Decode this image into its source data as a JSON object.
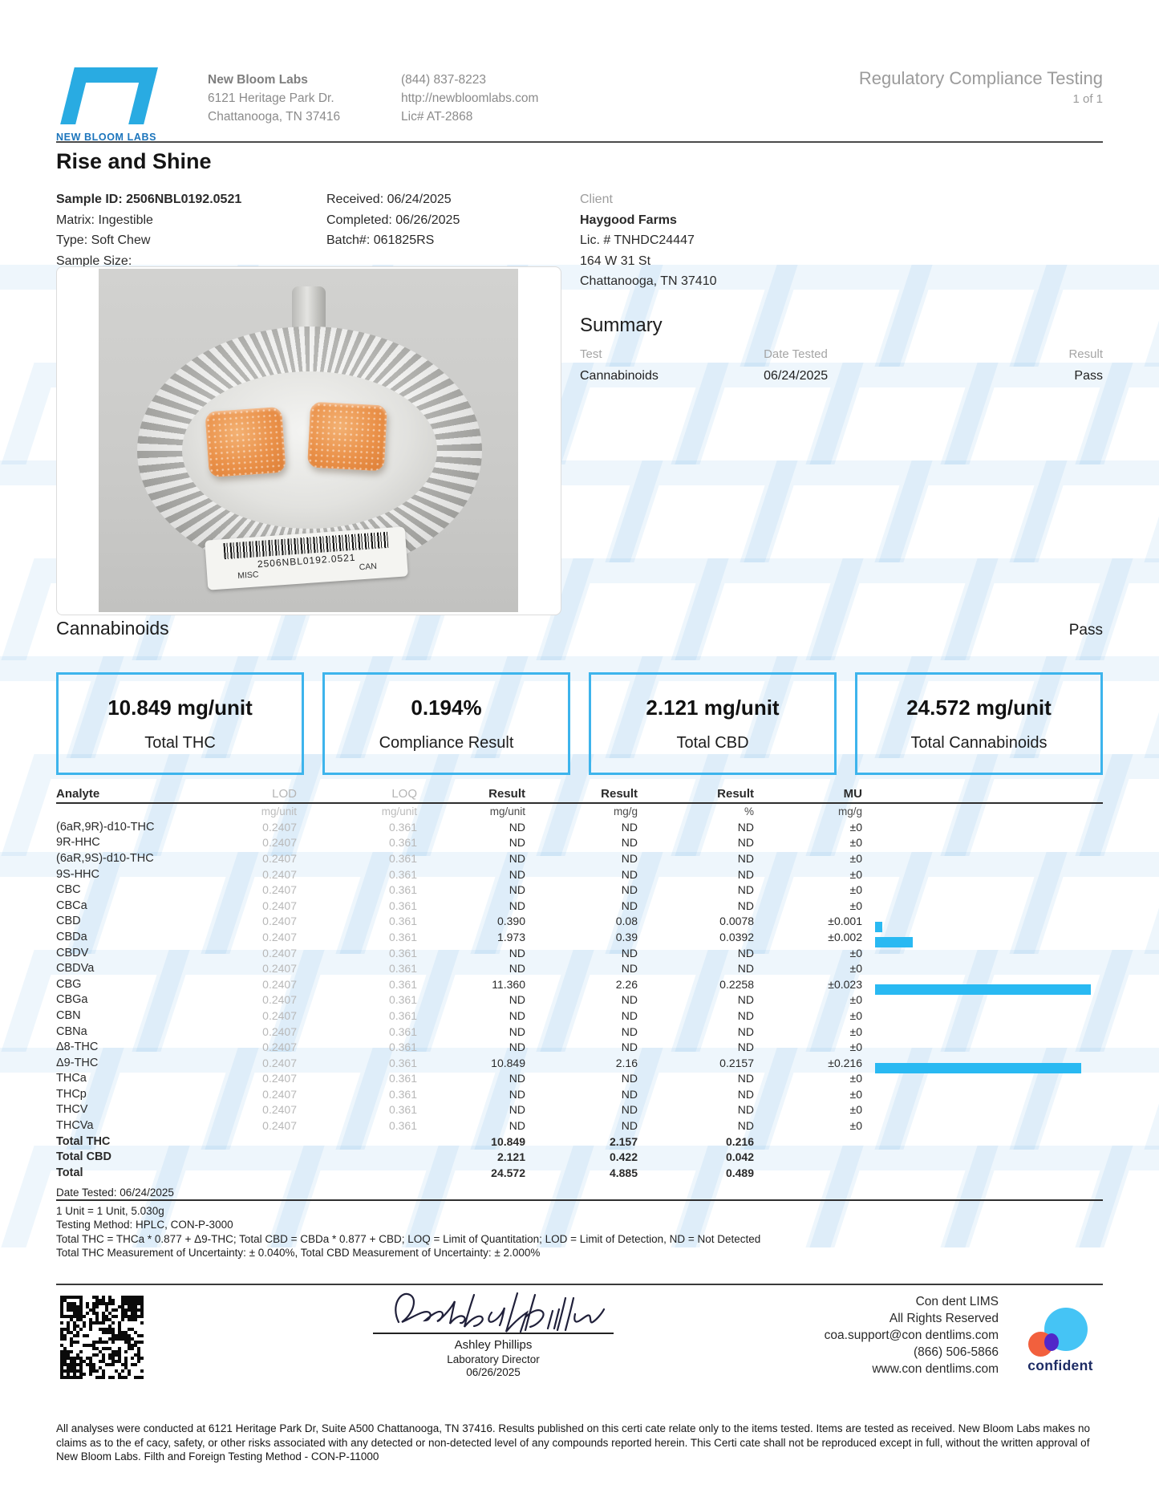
{
  "header": {
    "logo_caption": "NEW BLOOM LABS",
    "company": {
      "name": "New Bloom Labs",
      "address1": "6121 Heritage Park Dr.",
      "address2": "Chattanooga, TN 37416"
    },
    "contact": {
      "phone": "(844) 837-8223",
      "website": "http://newbloomlabs.com",
      "license": "Lic# AT-2868"
    },
    "report_type": "Regulatory Compliance Testing",
    "page": "1 of 1"
  },
  "sample": {
    "product_name": "Rise and Shine",
    "sample_id": "Sample ID: 2506NBL0192.0521",
    "matrix": "Matrix: Ingestible",
    "type": "Type: Soft Chew",
    "sample_size": "Sample Size:",
    "received": "Received: 06/24/2025",
    "completed": "Completed: 06/26/2025",
    "batch": "Batch#: 061825RS",
    "client_label": "Client",
    "client_name": "Haygood Farms",
    "client_license": "Lic. # TNHDC24447",
    "client_address1": "164 W 31 St",
    "client_address2": "Chattanooga, TN 37410"
  },
  "photo": {
    "barcode_text": "2506NBL0192.0521",
    "label_left": "MISC",
    "label_right": "CAN"
  },
  "summary": {
    "title": "Summary",
    "col_test": "Test",
    "col_date": "Date Tested",
    "col_result": "Result",
    "test": "Cannabinoids",
    "date": "06/24/2025",
    "result": "Pass"
  },
  "section": {
    "title": "Cannabinoids",
    "status": "Pass"
  },
  "metrics": [
    {
      "value": "10.849 mg/unit",
      "label": "Total THC"
    },
    {
      "value": "0.194%",
      "label": "Compliance Result"
    },
    {
      "value": "2.121 mg/unit",
      "label": "Total CBD"
    },
    {
      "value": "24.572 mg/unit",
      "label": "Total Cannabinoids"
    }
  ],
  "table": {
    "headers": [
      "Analyte",
      "LOD",
      "LOQ",
      "Result",
      "Result",
      "Result",
      "MU"
    ],
    "units": [
      "",
      "mg/unit",
      "mg/unit",
      "mg/unit",
      "mg/g",
      "%",
      "mg/g"
    ],
    "bar_max_pct": 0.2258,
    "rows": [
      {
        "analyte": "(6aR,9R)-d10-THC",
        "lod": "0.2407",
        "loq": "0.361",
        "r1": "ND",
        "r2": "ND",
        "r3": "ND",
        "mu": "±0",
        "pct": 0
      },
      {
        "analyte": "9R-HHC",
        "lod": "0.2407",
        "loq": "0.361",
        "r1": "ND",
        "r2": "ND",
        "r3": "ND",
        "mu": "±0",
        "pct": 0
      },
      {
        "analyte": "(6aR,9S)-d10-THC",
        "lod": "0.2407",
        "loq": "0.361",
        "r1": "ND",
        "r2": "ND",
        "r3": "ND",
        "mu": "±0",
        "pct": 0
      },
      {
        "analyte": "9S-HHC",
        "lod": "0.2407",
        "loq": "0.361",
        "r1": "ND",
        "r2": "ND",
        "r3": "ND",
        "mu": "±0",
        "pct": 0
      },
      {
        "analyte": "CBC",
        "lod": "0.2407",
        "loq": "0.361",
        "r1": "ND",
        "r2": "ND",
        "r3": "ND",
        "mu": "±0",
        "pct": 0
      },
      {
        "analyte": "CBCa",
        "lod": "0.2407",
        "loq": "0.361",
        "r1": "ND",
        "r2": "ND",
        "r3": "ND",
        "mu": "±0",
        "pct": 0
      },
      {
        "analyte": "CBD",
        "lod": "0.2407",
        "loq": "0.361",
        "r1": "0.390",
        "r2": "0.08",
        "r3": "0.0078",
        "mu": "±0.001",
        "pct": 0.0078
      },
      {
        "analyte": "CBDa",
        "lod": "0.2407",
        "loq": "0.361",
        "r1": "1.973",
        "r2": "0.39",
        "r3": "0.0392",
        "mu": "±0.002",
        "pct": 0.0392
      },
      {
        "analyte": "CBDV",
        "lod": "0.2407",
        "loq": "0.361",
        "r1": "ND",
        "r2": "ND",
        "r3": "ND",
        "mu": "±0",
        "pct": 0
      },
      {
        "analyte": "CBDVa",
        "lod": "0.2407",
        "loq": "0.361",
        "r1": "ND",
        "r2": "ND",
        "r3": "ND",
        "mu": "±0",
        "pct": 0
      },
      {
        "analyte": "CBG",
        "lod": "0.2407",
        "loq": "0.361",
        "r1": "11.360",
        "r2": "2.26",
        "r3": "0.2258",
        "mu": "±0.023",
        "pct": 0.2258
      },
      {
        "analyte": "CBGa",
        "lod": "0.2407",
        "loq": "0.361",
        "r1": "ND",
        "r2": "ND",
        "r3": "ND",
        "mu": "±0",
        "pct": 0
      },
      {
        "analyte": "CBN",
        "lod": "0.2407",
        "loq": "0.361",
        "r1": "ND",
        "r2": "ND",
        "r3": "ND",
        "mu": "±0",
        "pct": 0
      },
      {
        "analyte": "CBNa",
        "lod": "0.2407",
        "loq": "0.361",
        "r1": "ND",
        "r2": "ND",
        "r3": "ND",
        "mu": "±0",
        "pct": 0
      },
      {
        "analyte": "Δ8-THC",
        "lod": "0.2407",
        "loq": "0.361",
        "r1": "ND",
        "r2": "ND",
        "r3": "ND",
        "mu": "±0",
        "pct": 0
      },
      {
        "analyte": "Δ9-THC",
        "lod": "0.2407",
        "loq": "0.361",
        "r1": "10.849",
        "r2": "2.16",
        "r3": "0.2157",
        "mu": "±0.216",
        "pct": 0.2157
      },
      {
        "analyte": "THCa",
        "lod": "0.2407",
        "loq": "0.361",
        "r1": "ND",
        "r2": "ND",
        "r3": "ND",
        "mu": "±0",
        "pct": 0
      },
      {
        "analyte": "THCp",
        "lod": "0.2407",
        "loq": "0.361",
        "r1": "ND",
        "r2": "ND",
        "r3": "ND",
        "mu": "±0",
        "pct": 0
      },
      {
        "analyte": "THCV",
        "lod": "0.2407",
        "loq": "0.361",
        "r1": "ND",
        "r2": "ND",
        "r3": "ND",
        "mu": "±0",
        "pct": 0
      },
      {
        "analyte": "THCVa",
        "lod": "0.2407",
        "loq": "0.361",
        "r1": "ND",
        "r2": "ND",
        "r3": "ND",
        "mu": "±0",
        "pct": 0
      }
    ],
    "totals": [
      {
        "label": "Total THC",
        "r1": "10.849",
        "r2": "2.157",
        "r3": "0.216"
      },
      {
        "label": "Total CBD",
        "r1": "2.121",
        "r2": "0.422",
        "r3": "0.042"
      },
      {
        "label": "Total",
        "r1": "24.572",
        "r2": "4.885",
        "r3": "0.489"
      }
    ]
  },
  "footnotes": {
    "date_tested": "Date Tested: 06/24/2025",
    "lines": [
      "1 Unit = 1 Unit, 5.030g",
      "Testing Method: HPLC, CON-P-3000",
      "Total THC = THCa * 0.877 + Δ9-THC; Total CBD = CBDa * 0.877 + CBD; LOQ = Limit of Quantitation; LOD = Limit of Detection, ND = Not Detected",
      "Total THC Measurement of Uncertainty: ± 0.040%, Total CBD Measurement of Uncertainty: ± 2.000%"
    ]
  },
  "signatory": {
    "signature_name": "Ashley N Phillips",
    "name": "Ashley Phillips",
    "title": "Laboratory Director",
    "date": "06/26/2025"
  },
  "lims": {
    "line1": "Con dent LIMS",
    "line2": "All Rights Reserved",
    "line3": "coa.support@con dentlims.com",
    "line4": "(866) 506-5866",
    "line5": "www.con dentlims.com",
    "brand": "confident"
  },
  "disclaimer": "All analyses were conducted at 6121 Heritage Park Dr, Suite A500 Chattanooga, TN 37416. Results published on this certi cate relate only to the items tested. Items are tested as received. New Bloom Labs makes no claims as to the ef cacy, safety, or other risks associated with any detected or non-detected level of any compounds reported herein. This Certi cate shall not be reproduced except in full, without the written approval of New Bloom Labs. Filth and Foreign Testing Method - CON-P-11000",
  "colors": {
    "accent": "#29ABE2",
    "bar": "#29B9F2",
    "watermark_tint": "#EBF4FC"
  }
}
